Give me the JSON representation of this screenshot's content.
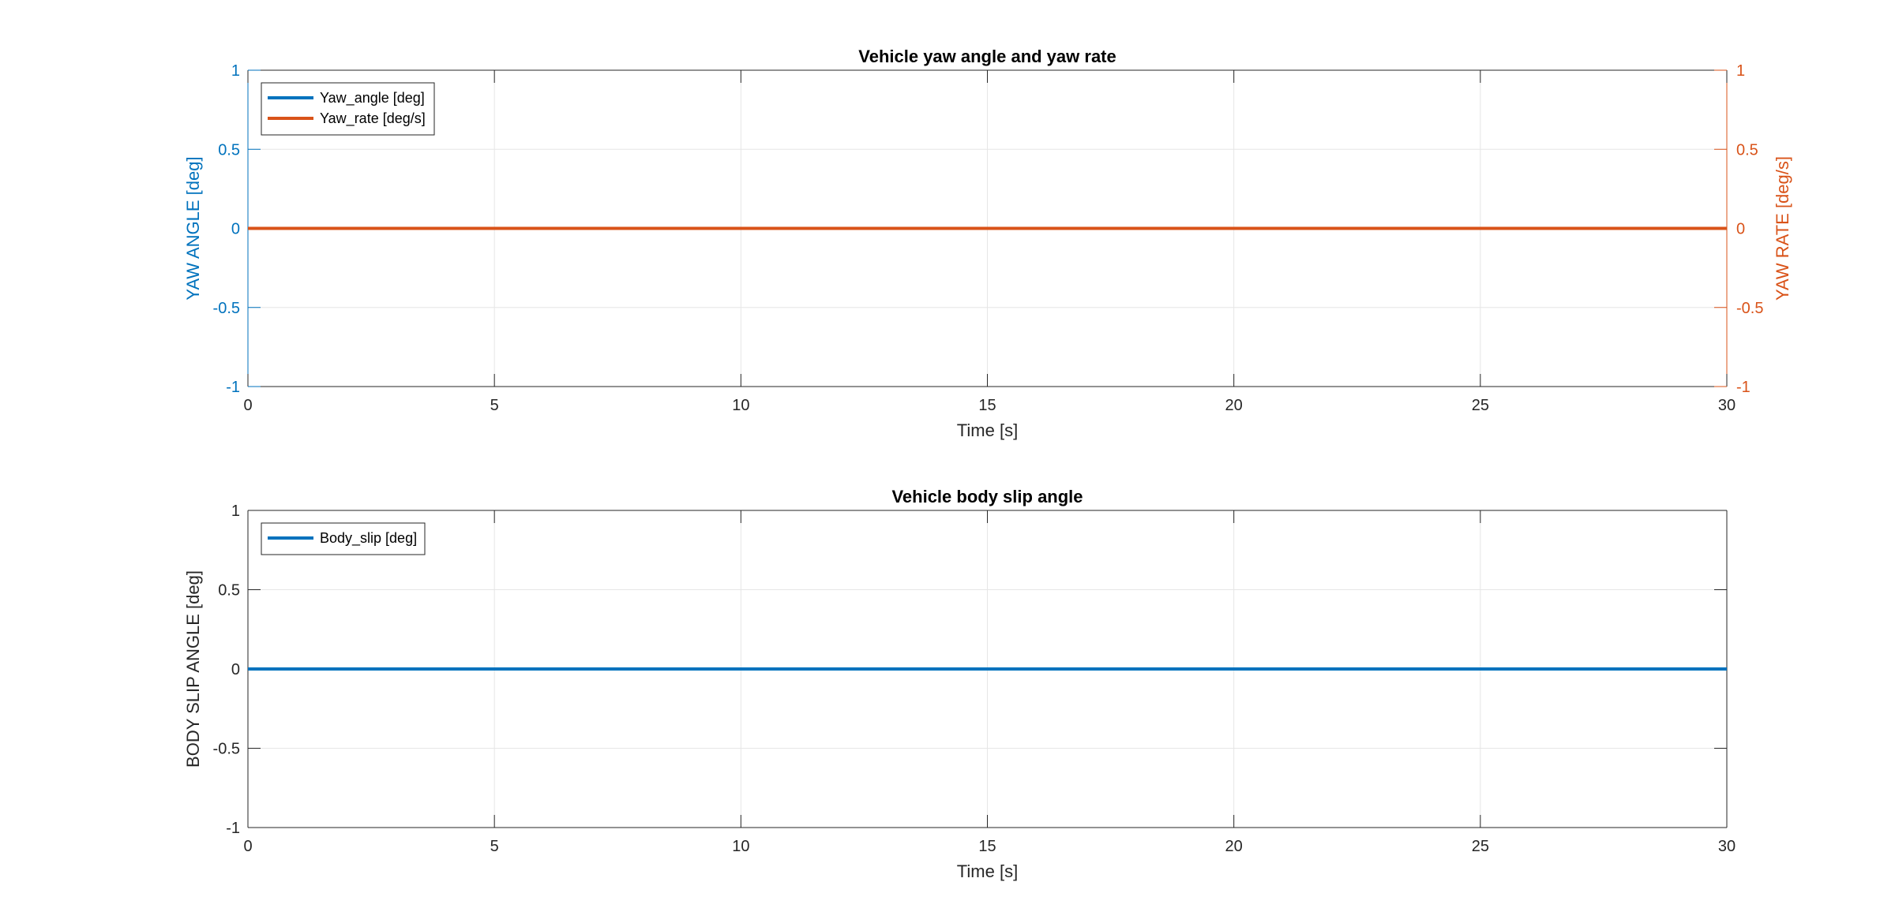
{
  "colors": {
    "blue": "#0072BD",
    "orange": "#D95319",
    "axis": "#262626",
    "grid": "#e6e6e6",
    "label": "#262626"
  },
  "chart_data": [
    {
      "type": "line",
      "title": "Vehicle yaw angle and yaw rate",
      "xlabel": "Time [s]",
      "ylabel_left": "YAW ANGLE [deg]",
      "ylabel_right": "YAW RATE [deg/s]",
      "xlim": [
        0,
        30
      ],
      "ylim_left": [
        -1,
        1
      ],
      "ylim_right": [
        -1,
        1
      ],
      "xticks": [
        0,
        5,
        10,
        15,
        20,
        25,
        30
      ],
      "yticks_left": [
        -1,
        -0.5,
        0,
        0.5,
        1
      ],
      "yticks_right": [
        -1,
        -0.5,
        0,
        0.5,
        1
      ],
      "grid": true,
      "legend_position": "top-left",
      "series": [
        {
          "name": "Yaw_angle [deg]",
          "axis": "left",
          "color": "#0072BD",
          "x": [
            0,
            30
          ],
          "y": [
            0,
            0
          ]
        },
        {
          "name": "Yaw_rate [deg/s]",
          "axis": "right",
          "color": "#D95319",
          "x": [
            0,
            30
          ],
          "y": [
            0,
            0
          ]
        }
      ]
    },
    {
      "type": "line",
      "title": "Vehicle body slip angle",
      "xlabel": "Time [s]",
      "ylabel": "BODY SLIP ANGLE [deg]",
      "xlim": [
        0,
        30
      ],
      "ylim": [
        -1,
        1
      ],
      "xticks": [
        0,
        5,
        10,
        15,
        20,
        25,
        30
      ],
      "yticks": [
        -1,
        -0.5,
        0,
        0.5,
        1
      ],
      "grid": true,
      "legend_position": "top-left",
      "series": [
        {
          "name": "Body_slip [deg]",
          "axis": "left",
          "color": "#0072BD",
          "x": [
            0,
            30
          ],
          "y": [
            0,
            0
          ]
        }
      ]
    }
  ]
}
